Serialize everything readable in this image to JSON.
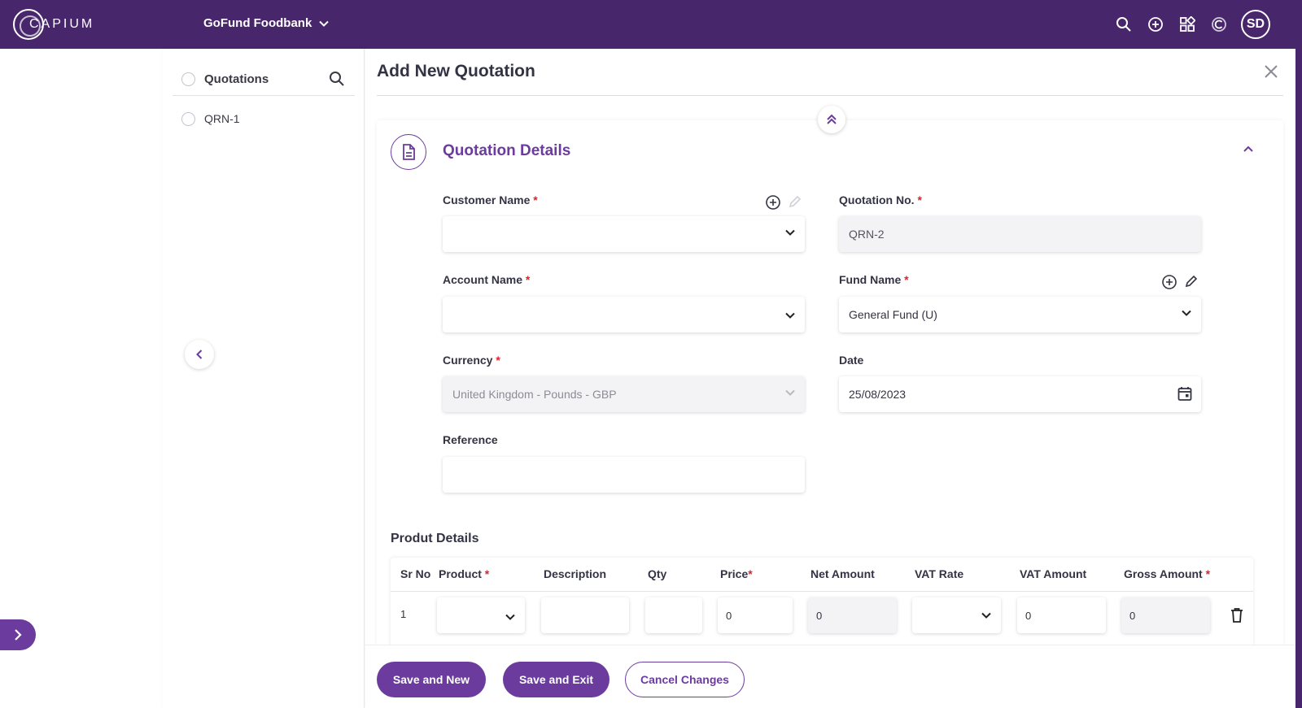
{
  "header": {
    "logo_text": "CAPIUM",
    "org_name": "GoFund Foodbank",
    "avatar_initials": "SD",
    "icons": [
      "search-icon",
      "add-circle-icon",
      "apps-grid-icon",
      "capium-c-icon"
    ]
  },
  "list_panel": {
    "title": "Quotations",
    "items": [
      {
        "label": "QRN-1"
      }
    ]
  },
  "form": {
    "page_title": "Add New Quotation",
    "section_title": "Quotation Details",
    "customer_name": {
      "label": "Customer Name",
      "value": ""
    },
    "quotation_no": {
      "label": "Quotation No.",
      "value": "QRN-2"
    },
    "account_name": {
      "label": "Account Name",
      "value": ""
    },
    "fund_name": {
      "label": "Fund Name",
      "value": "General Fund (U)"
    },
    "currency": {
      "label": "Currency",
      "value": "United Kingdom - Pounds - GBP"
    },
    "date": {
      "label": "Date",
      "value": "25/08/2023"
    },
    "reference": {
      "label": "Reference",
      "value": ""
    },
    "required_marker": "*"
  },
  "product_details": {
    "title": "Produt Details",
    "columns": {
      "sr_no": "Sr No",
      "product": "Product",
      "description": "Description",
      "qty": "Qty",
      "price": "Price",
      "net_amount": "Net Amount",
      "vat_rate": "VAT Rate",
      "vat_amount": "VAT Amount",
      "gross_amount": "Gross Amount"
    },
    "rows": [
      {
        "sr_no": "1",
        "product": "",
        "description": "",
        "qty": "",
        "price": "0",
        "net_amount": "0",
        "vat_rate": "",
        "vat_amount": "0",
        "gross_amount": "0"
      }
    ]
  },
  "footer": {
    "save_new": "Save and New",
    "save_exit": "Save and Exit",
    "cancel": "Cancel Changes"
  },
  "colors": {
    "brand": "#48266b",
    "accent": "#6c3b9e",
    "required": "#e0202e"
  }
}
